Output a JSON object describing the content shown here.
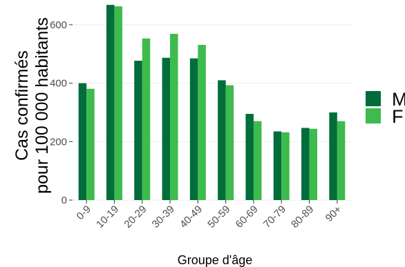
{
  "chart_data": {
    "type": "bar",
    "categories": [
      "0-9",
      "10-19",
      "20-29",
      "30-39",
      "40-49",
      "50-59",
      "60-69",
      "70-79",
      "80-89",
      "90+"
    ],
    "series": [
      {
        "name": "M",
        "color": "#006d3b",
        "values": [
          400,
          668,
          477,
          487,
          485,
          410,
          295,
          235,
          247,
          300
        ]
      },
      {
        "name": "F",
        "color": "#3dbb4c",
        "values": [
          381,
          663,
          553,
          569,
          531,
          393,
          270,
          232,
          244,
          270
        ]
      }
    ],
    "title": "",
    "xlabel": "Groupe d'âge",
    "ylabel_line1": "Cas confirmés",
    "ylabel_line2": "pour 100 000 habitants",
    "yticks": [
      0,
      200,
      400,
      600
    ],
    "ylim": [
      0,
      680
    ],
    "grid": true,
    "legend_position": "right"
  }
}
